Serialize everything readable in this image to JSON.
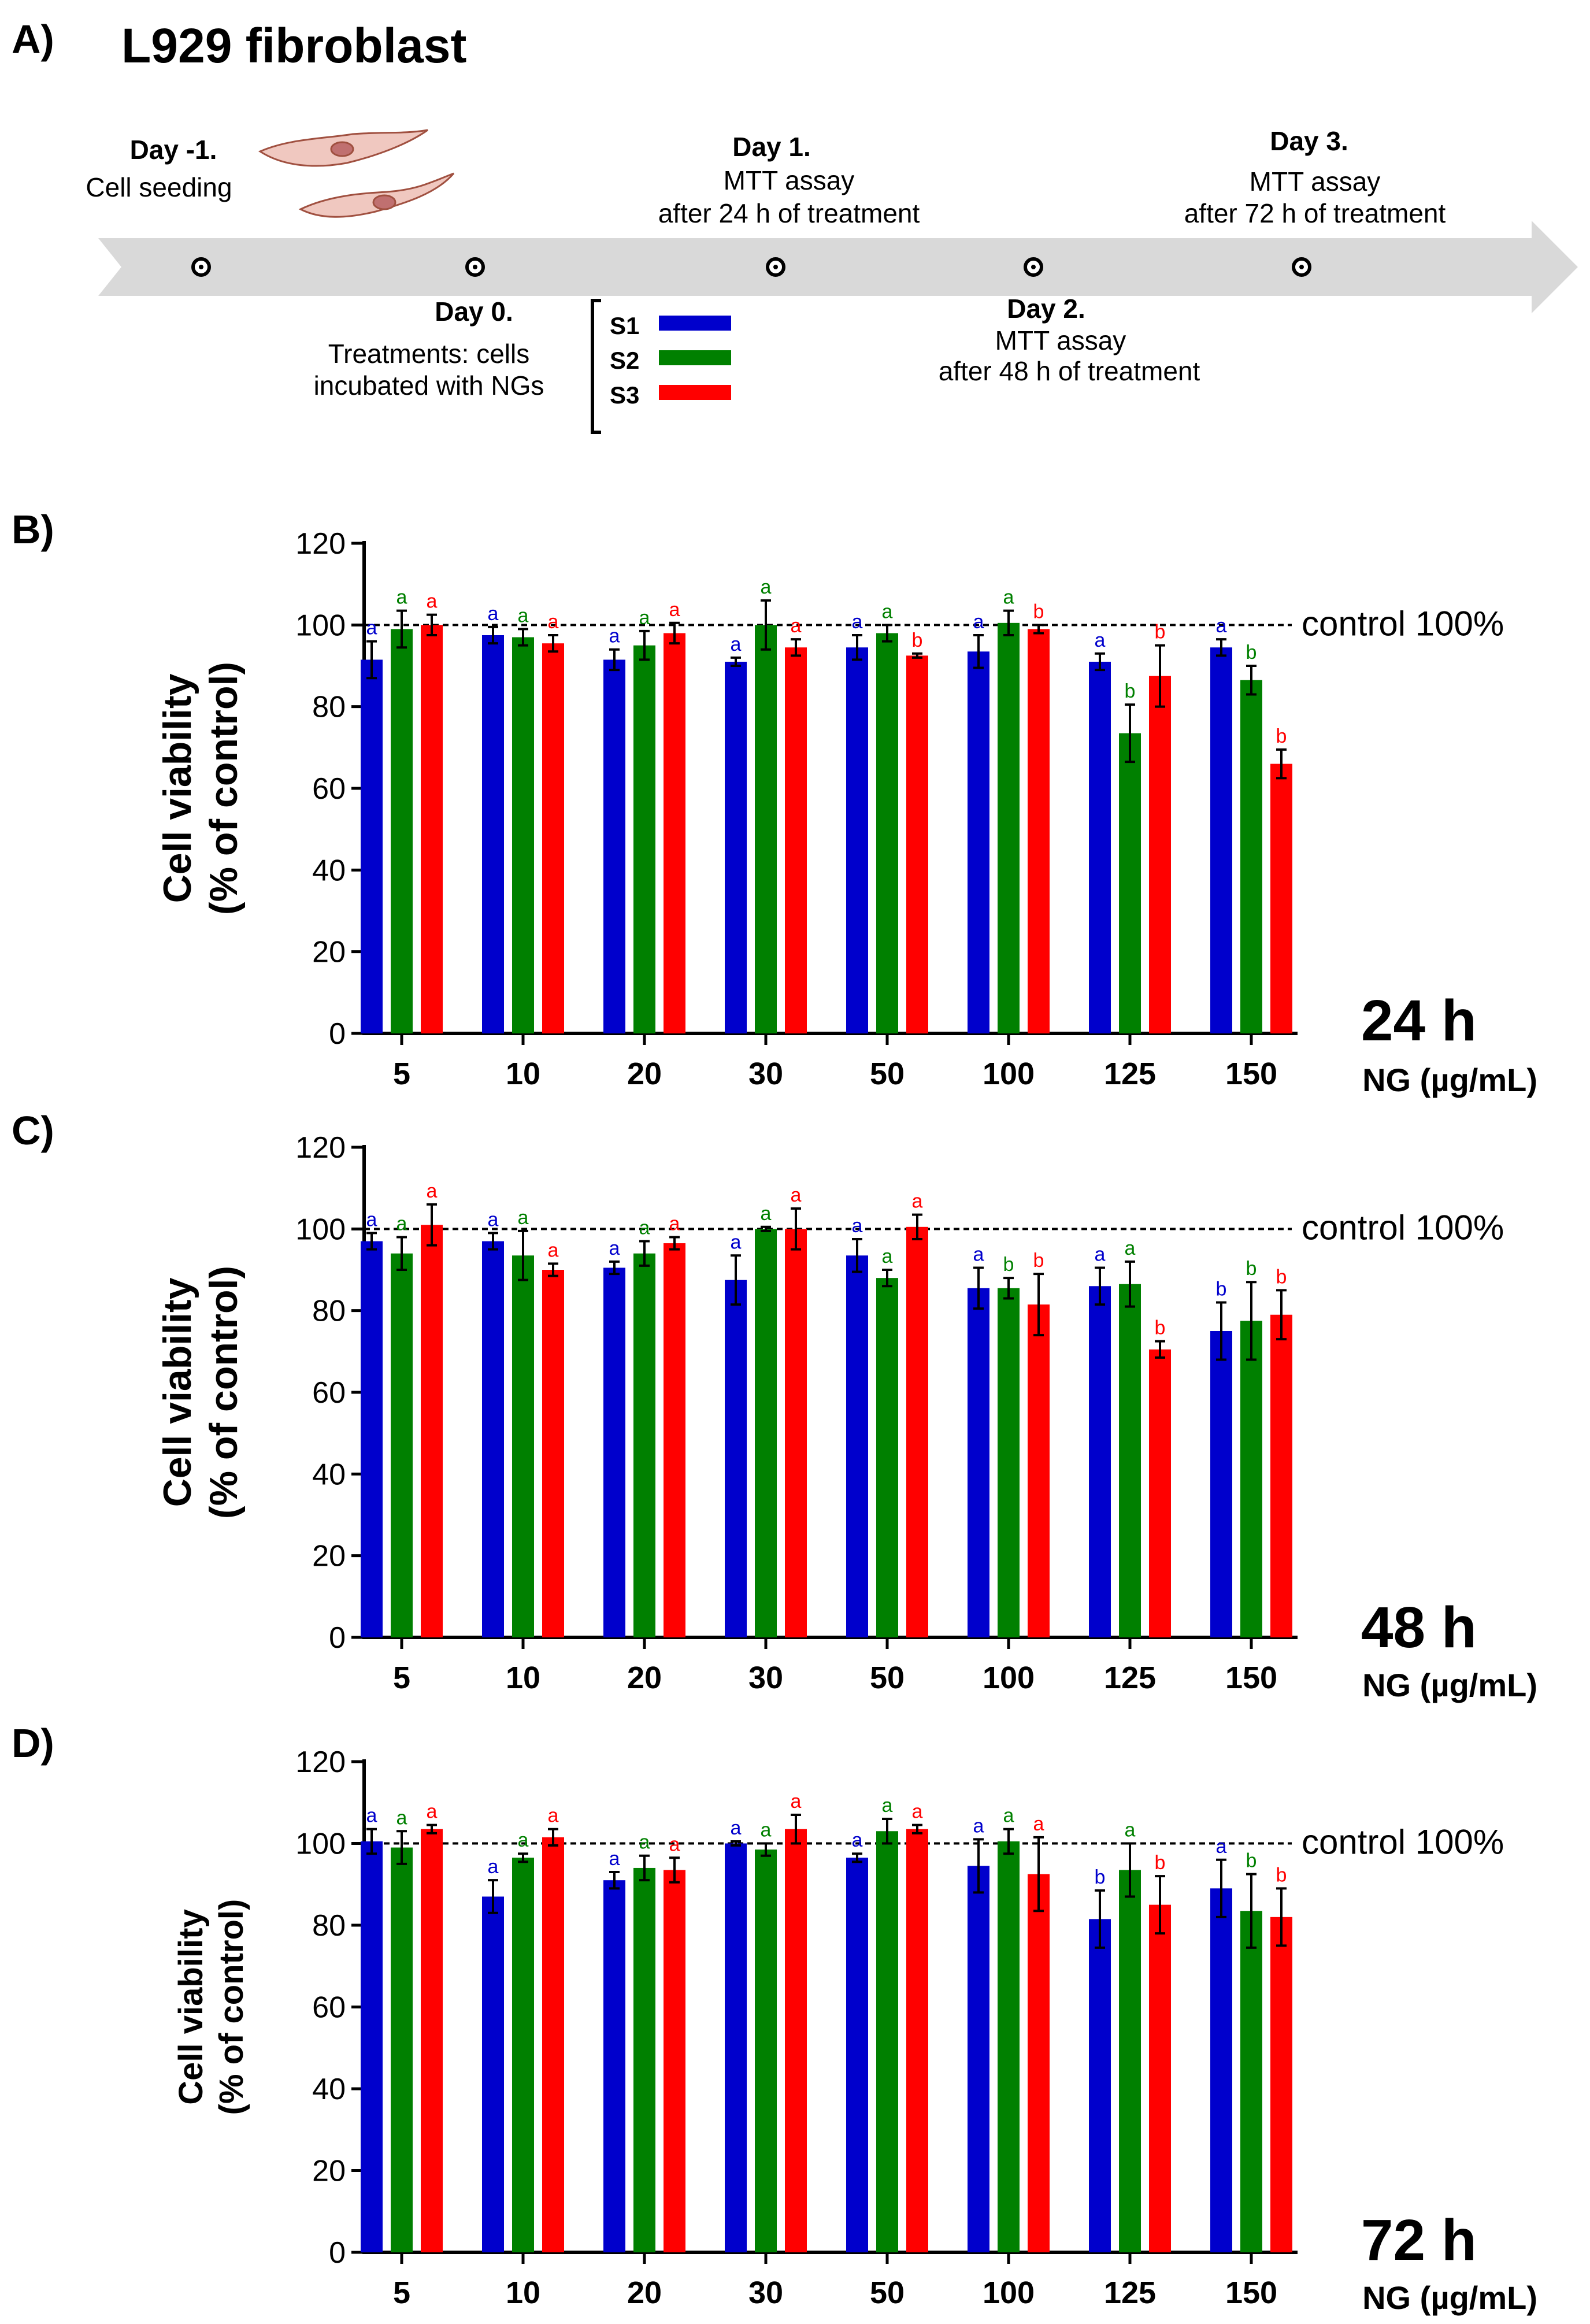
{
  "panels": {
    "A": {
      "letter": "A)",
      "title": "L929 fibroblast",
      "events": [
        {
          "title": "Day -1.",
          "lines": [
            "Cell seeding"
          ]
        },
        {
          "title": "Day 0.",
          "lines": [
            "Treatments: cells",
            "incubated with NGs"
          ]
        },
        {
          "title": "Day 1.",
          "lines": [
            "MTT assay",
            "after 24 h of treatment"
          ]
        },
        {
          "title": "Day 2.",
          "lines": [
            "MTT assay",
            "after 48 h of treatment"
          ]
        },
        {
          "title": "Day 3.",
          "lines": [
            "MTT assay",
            "after 72 h of treatment"
          ]
        }
      ],
      "legend": [
        {
          "label": "S1",
          "color": "#0000cc"
        },
        {
          "label": "S2",
          "color": "#008000"
        },
        {
          "label": "S3",
          "color": "#ff0000"
        }
      ]
    }
  },
  "colors": {
    "S1": "#0000cc",
    "S2": "#008000",
    "S3": "#ff0000",
    "arrow": "#d9d9d9",
    "cell": "#f0c8c0",
    "cell_edge": "#a05040"
  },
  "chart_data": [
    {
      "panel": "B)",
      "type": "bar",
      "time_label": "24 h",
      "ylabel": "Cell viability (% of control)",
      "ylabel_lines": [
        "Cell viability",
        "(% of control)"
      ],
      "xlabel": "NG (µg/mL)",
      "ylim": [
        0,
        120
      ],
      "yticks": [
        0,
        20,
        40,
        60,
        80,
        100,
        120
      ],
      "reference_line": {
        "value": 100,
        "label": "control 100%"
      },
      "categories": [
        "5",
        "10",
        "20",
        "30",
        "50",
        "100",
        "125",
        "150"
      ],
      "series": [
        {
          "name": "S1",
          "values": [
            91.5,
            97.5,
            91.5,
            91,
            94.5,
            93.5,
            91,
            94.5
          ],
          "errors": [
            4.5,
            2,
            2.5,
            1,
            3,
            4,
            2,
            2
          ],
          "letters": [
            "a",
            "a",
            "a",
            "a",
            "a",
            "a",
            "a",
            "a"
          ]
        },
        {
          "name": "S2",
          "values": [
            99,
            97,
            95,
            100,
            98,
            100.5,
            73.5,
            86.5
          ],
          "errors": [
            4.5,
            2,
            3.5,
            6,
            2,
            3,
            7,
            3.5
          ],
          "letters": [
            "a",
            "a",
            "a",
            "a",
            "a",
            "a",
            "b",
            "b"
          ]
        },
        {
          "name": "S3",
          "values": [
            100,
            95.5,
            98,
            94.5,
            92.5,
            99,
            87.5,
            66
          ],
          "errors": [
            2.5,
            2,
            2.5,
            2,
            0.5,
            1,
            7.5,
            3.5
          ],
          "letters": [
            "a",
            "a",
            "a",
            "a",
            "b",
            "b",
            "b",
            "b"
          ]
        }
      ]
    },
    {
      "panel": "C)",
      "type": "bar",
      "time_label": "48 h",
      "ylabel": "Cell viability (% of control)",
      "ylabel_lines": [
        "Cell viability",
        "(% of control)"
      ],
      "xlabel": "NG (µg/mL)",
      "ylim": [
        0,
        120
      ],
      "yticks": [
        0,
        20,
        40,
        60,
        80,
        100,
        120
      ],
      "reference_line": {
        "value": 100,
        "label": "control 100%"
      },
      "categories": [
        "5",
        "10",
        "20",
        "30",
        "50",
        "100",
        "125",
        "150"
      ],
      "series": [
        {
          "name": "S1",
          "values": [
            97,
            97,
            90.5,
            87.5,
            93.5,
            85.5,
            86,
            75
          ],
          "errors": [
            2,
            2,
            1.5,
            6,
            4,
            5,
            4.5,
            7
          ],
          "letters": [
            "a",
            "a",
            "a",
            "a",
            "a",
            "a",
            "a",
            "b"
          ]
        },
        {
          "name": "S2",
          "values": [
            94,
            93.5,
            94,
            100,
            88,
            85.5,
            86.5,
            77.5
          ],
          "errors": [
            4,
            6,
            3,
            0.5,
            2,
            2.5,
            5.5,
            9.5
          ],
          "letters": [
            "a",
            "a",
            "a",
            "a",
            "a",
            "b",
            "a",
            "b"
          ]
        },
        {
          "name": "S3",
          "values": [
            101,
            90,
            96.5,
            100,
            100.5,
            81.5,
            70.5,
            79
          ],
          "errors": [
            5,
            1.5,
            1.5,
            5,
            3,
            7.5,
            2,
            6
          ],
          "letters": [
            "a",
            "a",
            "a",
            "a",
            "a",
            "b",
            "b",
            "b"
          ]
        }
      ]
    },
    {
      "panel": "D)",
      "type": "bar",
      "time_label": "72 h",
      "ylabel": "Cell viability (% of control)",
      "ylabel_lines": [
        "Cell viability",
        "(% of control)"
      ],
      "xlabel": "NG (µg/mL)",
      "ylim": [
        0,
        120
      ],
      "yticks": [
        0,
        20,
        40,
        60,
        80,
        100,
        120
      ],
      "reference_line": {
        "value": 100,
        "label": "control 100%"
      },
      "categories": [
        "5",
        "10",
        "20",
        "30",
        "50",
        "100",
        "125",
        "150"
      ],
      "series": [
        {
          "name": "S1",
          "values": [
            100.5,
            87,
            91,
            100,
            96.5,
            94.5,
            81.5,
            89
          ],
          "errors": [
            3,
            4,
            2,
            0.5,
            1,
            6.5,
            7,
            7
          ],
          "letters": [
            "a",
            "a",
            "a",
            "a",
            "a",
            "a",
            "b",
            "a"
          ]
        },
        {
          "name": "S2",
          "values": [
            99,
            96.5,
            94,
            98.5,
            103,
            100.5,
            93.5,
            83.5
          ],
          "errors": [
            4,
            1,
            3,
            1.5,
            3,
            3,
            6.5,
            9
          ],
          "letters": [
            "a",
            "a",
            "a",
            "a",
            "a",
            "a",
            "a",
            "b"
          ]
        },
        {
          "name": "S3",
          "values": [
            103.5,
            101.5,
            93.5,
            103.5,
            103.5,
            92.5,
            85,
            82
          ],
          "errors": [
            1,
            2,
            3,
            3.5,
            1,
            9,
            7,
            7
          ],
          "letters": [
            "a",
            "a",
            "a",
            "a",
            "a",
            "a",
            "b",
            "b"
          ]
        }
      ]
    }
  ]
}
